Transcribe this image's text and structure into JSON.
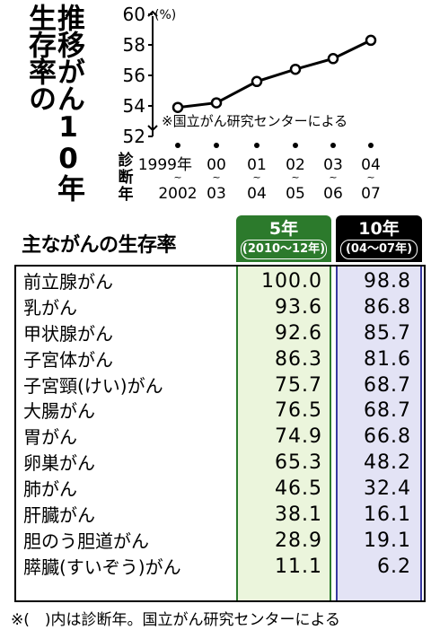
{
  "chart_data": [
    {
      "type": "line",
      "title": "推移がん10年生存率の",
      "unit": "(%)",
      "ylim": [
        52,
        60
      ],
      "yticks": [
        "60",
        "58",
        "56",
        "54",
        "52"
      ],
      "x_label": "診断年",
      "x_top": [
        "1999年",
        "00",
        "01",
        "02",
        "03",
        "04"
      ],
      "x_bottom": [
        "2002",
        "03",
        "04",
        "05",
        "06",
        "07"
      ],
      "values": [
        53.9,
        54.2,
        55.6,
        56.4,
        57.1,
        58.3
      ],
      "source": "※国立がん研究センターによる"
    },
    {
      "type": "table",
      "title": "主ながんの生存率",
      "columns": [
        {
          "label": "5年",
          "sub": "(2010〜12年)"
        },
        {
          "label": "10年",
          "sub": "(04〜07年)"
        }
      ],
      "rows": [
        {
          "name": "前立腺がん",
          "v5": "100.0",
          "v10": "98.8"
        },
        {
          "name": "乳がん",
          "v5": "93.6",
          "v10": "86.8"
        },
        {
          "name": "甲状腺がん",
          "v5": "92.6",
          "v10": "85.7"
        },
        {
          "name": "子宮体がん",
          "v5": "86.3",
          "v10": "81.6"
        },
        {
          "name": "子宮頸(けい)がん",
          "v5": "75.7",
          "v10": "68.7"
        },
        {
          "name": "大腸がん",
          "v5": "76.5",
          "v10": "68.7"
        },
        {
          "name": "胃がん",
          "v5": "74.9",
          "v10": "66.8"
        },
        {
          "name": "卵巣がん",
          "v5": "65.3",
          "v10": "48.2"
        },
        {
          "name": "肺がん",
          "v5": "46.5",
          "v10": "32.4"
        },
        {
          "name": "肝臓がん",
          "v5": "38.1",
          "v10": "16.1"
        },
        {
          "name": "胆のう胆道がん",
          "v5": "28.9",
          "v10": "19.1"
        },
        {
          "name": "膵臓(すいぞう)がん",
          "v5": "11.1",
          "v10": "6.2"
        }
      ],
      "footnote": "※(　)内は診断年。国立がん研究センターによる"
    }
  ],
  "colors": {
    "green_header": "#2c7a2c",
    "green_column": "#ebf5dc",
    "navy_column": "#e3e3f5",
    "black_header": "#000000"
  }
}
